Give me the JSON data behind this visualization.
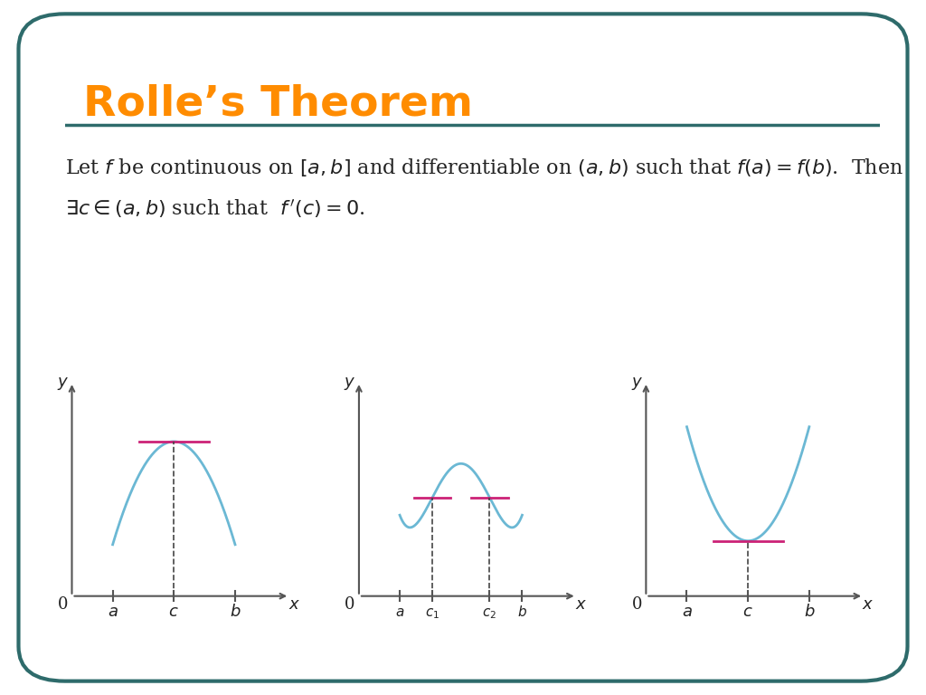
{
  "title": "Rolle’s Theorem",
  "title_color": "#FF8C00",
  "border_color": "#2E6B6B",
  "background_color": "#FFFFFF",
  "curve_color": "#6BB8D4",
  "tangent_color": "#CC2277",
  "dashed_color": "#444444",
  "axis_color": "#555555",
  "text_color": "#222222",
  "theorem_text_line1": "Let $f$ be continuous on $[a,b]$ and differentiable on $(a,b)$ such that $f(a) = f(b)$.  Then",
  "theorem_text_line2": "$\\exists c \\in (a,b)$ such that  $f\\,'(c) = 0$.",
  "graphs": [
    {
      "type": "concave_down",
      "a": 1.0,
      "b": 4.0,
      "c": 2.5,
      "labels": {
        "a": "a",
        "b": "b",
        "c": "c"
      }
    },
    {
      "type": "w_shape",
      "a": 1.0,
      "b": 4.0,
      "c1": 1.8,
      "c2": 3.2,
      "labels": {
        "a": "a",
        "b": "b",
        "c1": "c_1",
        "c2": "c_2"
      }
    },
    {
      "type": "concave_up",
      "a": 1.0,
      "b": 4.0,
      "c": 2.5,
      "labels": {
        "a": "a",
        "b": "b",
        "c": "c"
      }
    }
  ]
}
